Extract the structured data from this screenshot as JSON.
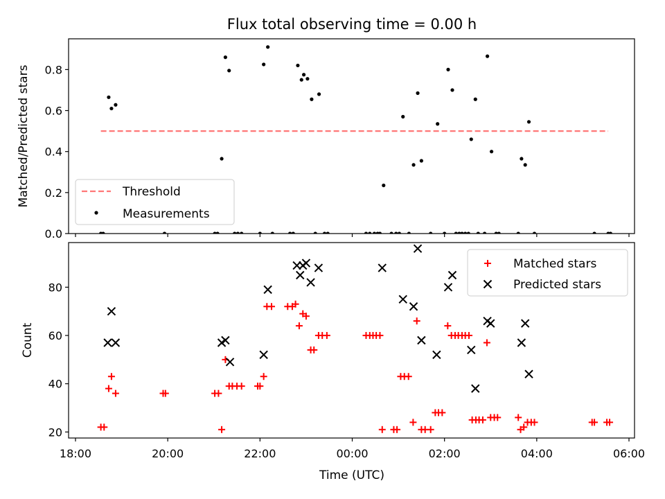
{
  "chart_data": {
    "title": "Flux total observing time = 0.00 h",
    "xlabel": "Time (UTC)",
    "xticks": [
      {
        "h": 18,
        "label": "18:00"
      },
      {
        "h": 20,
        "label": "20:00"
      },
      {
        "h": 22,
        "label": "22:00"
      },
      {
        "h": 24,
        "label": "00:00"
      },
      {
        "h": 26,
        "label": "02:00"
      },
      {
        "h": 28,
        "label": "04:00"
      },
      {
        "h": 30,
        "label": "06:00"
      }
    ],
    "xlim": [
      17.85,
      30.12
    ],
    "panels": [
      {
        "type": "scatter",
        "ylabel": "Matched/Predicted stars",
        "ylim": [
          0,
          0.95
        ],
        "yticks": [
          0.0,
          0.2,
          0.4,
          0.6,
          0.8
        ],
        "ytick_labels": [
          "0.0",
          "0.2",
          "0.4",
          "0.6",
          "0.8"
        ],
        "legend_position": "lower-left",
        "threshold": {
          "name": "Threshold",
          "y": 0.5,
          "x_range": [
            18.55,
            29.55
          ],
          "color": "#ff7777"
        },
        "measurements": {
          "name": "Measurements",
          "color": "#000000",
          "points": [
            [
              18.55,
              0
            ],
            [
              18.6,
              0
            ],
            [
              18.72,
              0.665
            ],
            [
              18.78,
              0.61
            ],
            [
              18.87,
              0.628
            ],
            [
              19.93,
              0
            ],
            [
              21.02,
              0
            ],
            [
              21.08,
              0
            ],
            [
              21.17,
              0.365
            ],
            [
              21.25,
              0.86
            ],
            [
              21.33,
              0.795
            ],
            [
              21.45,
              0
            ],
            [
              21.52,
              0
            ],
            [
              21.6,
              0
            ],
            [
              22.0,
              0
            ],
            [
              22.08,
              0.825
            ],
            [
              22.17,
              0.91
            ],
            [
              22.27,
              0
            ],
            [
              22.65,
              0
            ],
            [
              22.72,
              0
            ],
            [
              22.82,
              0.82
            ],
            [
              22.9,
              0.75
            ],
            [
              22.95,
              0.775
            ],
            [
              23.03,
              0.755
            ],
            [
              23.12,
              0.655
            ],
            [
              23.2,
              0
            ],
            [
              23.28,
              0.68
            ],
            [
              23.4,
              0
            ],
            [
              23.47,
              0
            ],
            [
              24.3,
              0
            ],
            [
              24.38,
              0
            ],
            [
              24.48,
              0
            ],
            [
              24.55,
              0
            ],
            [
              24.6,
              0
            ],
            [
              24.68,
              0.235
            ],
            [
              24.85,
              0
            ],
            [
              24.95,
              0
            ],
            [
              25.02,
              0
            ],
            [
              25.1,
              0.57
            ],
            [
              25.23,
              0
            ],
            [
              25.33,
              0.335
            ],
            [
              25.42,
              0.685
            ],
            [
              25.5,
              0.355
            ],
            [
              25.7,
              0
            ],
            [
              25.85,
              0.535
            ],
            [
              26.0,
              0
            ],
            [
              26.08,
              0.8
            ],
            [
              26.17,
              0.7
            ],
            [
              26.25,
              0
            ],
            [
              26.32,
              0
            ],
            [
              26.38,
              0
            ],
            [
              26.45,
              0
            ],
            [
              26.52,
              0
            ],
            [
              26.58,
              0.46
            ],
            [
              26.67,
              0.655
            ],
            [
              26.73,
              0
            ],
            [
              26.87,
              0
            ],
            [
              26.93,
              0.865
            ],
            [
              27.02,
              0.4
            ],
            [
              27.12,
              0
            ],
            [
              27.18,
              0
            ],
            [
              27.6,
              0
            ],
            [
              27.67,
              0.365
            ],
            [
              27.75,
              0.335
            ],
            [
              27.83,
              0.545
            ],
            [
              27.95,
              0
            ],
            [
              29.25,
              0
            ],
            [
              29.55,
              0
            ],
            [
              29.6,
              0
            ]
          ]
        }
      },
      {
        "type": "scatter",
        "ylabel": "Count",
        "ylim": [
          17.5,
          98.5
        ],
        "yticks": [
          20,
          40,
          60,
          80
        ],
        "ytick_labels": [
          "20",
          "40",
          "60",
          "80"
        ],
        "legend_position": "upper-right",
        "series": [
          {
            "name": "Matched stars",
            "marker": "plus",
            "color": "#ff0000",
            "points": [
              [
                18.55,
                22
              ],
              [
                18.62,
                22
              ],
              [
                18.72,
                38
              ],
              [
                18.78,
                43
              ],
              [
                18.87,
                36
              ],
              [
                19.9,
                36
              ],
              [
                19.95,
                36
              ],
              [
                21.02,
                36
              ],
              [
                21.1,
                36
              ],
              [
                21.17,
                21
              ],
              [
                21.25,
                50
              ],
              [
                21.33,
                39
              ],
              [
                21.4,
                39
              ],
              [
                21.5,
                39
              ],
              [
                21.6,
                39
              ],
              [
                21.95,
                39
              ],
              [
                22.0,
                39
              ],
              [
                22.08,
                43
              ],
              [
                22.15,
                72
              ],
              [
                22.25,
                72
              ],
              [
                22.6,
                72
              ],
              [
                22.7,
                72
              ],
              [
                22.77,
                73
              ],
              [
                22.85,
                64
              ],
              [
                22.93,
                69
              ],
              [
                23.0,
                68
              ],
              [
                23.1,
                54
              ],
              [
                23.17,
                54
              ],
              [
                23.27,
                60
              ],
              [
                23.35,
                60
              ],
              [
                23.45,
                60
              ],
              [
                24.3,
                60
              ],
              [
                24.38,
                60
              ],
              [
                24.45,
                60
              ],
              [
                24.52,
                60
              ],
              [
                24.6,
                60
              ],
              [
                24.65,
                21
              ],
              [
                24.9,
                21
              ],
              [
                24.97,
                21
              ],
              [
                25.05,
                43
              ],
              [
                25.13,
                43
              ],
              [
                25.22,
                43
              ],
              [
                25.32,
                24
              ],
              [
                25.4,
                66
              ],
              [
                25.5,
                21
              ],
              [
                25.58,
                21
              ],
              [
                25.7,
                21
              ],
              [
                25.8,
                28
              ],
              [
                25.87,
                28
              ],
              [
                25.95,
                28
              ],
              [
                26.07,
                64
              ],
              [
                26.15,
                60
              ],
              [
                26.23,
                60
              ],
              [
                26.3,
                60
              ],
              [
                26.38,
                60
              ],
              [
                26.45,
                60
              ],
              [
                26.53,
                60
              ],
              [
                26.6,
                25
              ],
              [
                26.68,
                25
              ],
              [
                26.75,
                25
              ],
              [
                26.83,
                25
              ],
              [
                26.92,
                57
              ],
              [
                27.0,
                26
              ],
              [
                27.08,
                26
              ],
              [
                27.15,
                26
              ],
              [
                27.6,
                26
              ],
              [
                27.65,
                21
              ],
              [
                27.72,
                22
              ],
              [
                27.8,
                24
              ],
              [
                27.88,
                24
              ],
              [
                27.95,
                24
              ],
              [
                29.2,
                24
              ],
              [
                29.25,
                24
              ],
              [
                29.52,
                24
              ],
              [
                29.58,
                24
              ]
            ]
          },
          {
            "name": "Predicted stars",
            "marker": "x",
            "color": "#000000",
            "points": [
              [
                18.7,
                57
              ],
              [
                18.78,
                70
              ],
              [
                18.87,
                57
              ],
              [
                21.17,
                57
              ],
              [
                21.25,
                58
              ],
              [
                21.35,
                49
              ],
              [
                22.08,
                52
              ],
              [
                22.17,
                79
              ],
              [
                22.8,
                89
              ],
              [
                22.87,
                85
              ],
              [
                22.93,
                89
              ],
              [
                23.0,
                90
              ],
              [
                23.1,
                82
              ],
              [
                23.27,
                88
              ],
              [
                24.65,
                88
              ],
              [
                25.1,
                75
              ],
              [
                25.33,
                72
              ],
              [
                25.42,
                96
              ],
              [
                25.5,
                58
              ],
              [
                25.83,
                52
              ],
              [
                26.08,
                80
              ],
              [
                26.17,
                85
              ],
              [
                26.58,
                54
              ],
              [
                26.67,
                38
              ],
              [
                26.93,
                66
              ],
              [
                27.0,
                65
              ],
              [
                27.67,
                57
              ],
              [
                27.75,
                65
              ],
              [
                27.83,
                44
              ]
            ]
          }
        ]
      }
    ]
  }
}
